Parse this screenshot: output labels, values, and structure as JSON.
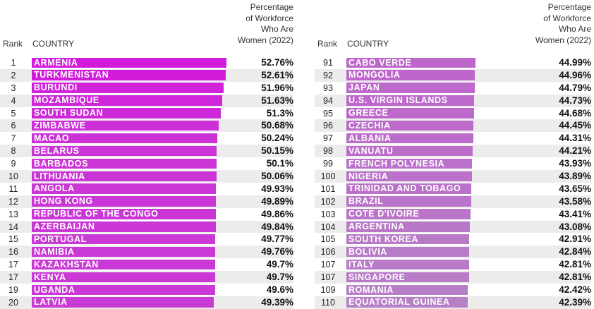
{
  "chart_data": {
    "type": "bar",
    "orientation": "horizontal",
    "column_headers": {
      "rank": "Rank",
      "country": "COUNTRY",
      "value": "Percentage\nof Workforce\nWho Are\nWomen (2022)"
    },
    "colors": {
      "high": "#d21bdc",
      "low": "#b77fc6"
    },
    "xlim": [
      0,
      52.76
    ],
    "panels": [
      {
        "rows": [
          {
            "rank": "1",
            "country": "ARMENIA",
            "value": 52.76,
            "label": "52.76%"
          },
          {
            "rank": "2",
            "country": "TURKMENISTAN",
            "value": 52.61,
            "label": "52.61%"
          },
          {
            "rank": "3",
            "country": "BURUNDI",
            "value": 51.96,
            "label": "51.96%"
          },
          {
            "rank": "4",
            "country": "MOZAMBIQUE",
            "value": 51.63,
            "label": "51.63%"
          },
          {
            "rank": "5",
            "country": "SOUTH SUDAN",
            "value": 51.3,
            "label": "51.3%"
          },
          {
            "rank": "6",
            "country": "ZIMBABWE",
            "value": 50.68,
            "label": "50.68%"
          },
          {
            "rank": "7",
            "country": "MACAO",
            "value": 50.24,
            "label": "50.24%"
          },
          {
            "rank": "8",
            "country": "BELARUS",
            "value": 50.15,
            "label": "50.15%"
          },
          {
            "rank": "9",
            "country": "BARBADOS",
            "value": 50.1,
            "label": "50.1%"
          },
          {
            "rank": "10",
            "country": "LITHUANIA",
            "value": 50.06,
            "label": "50.06%"
          },
          {
            "rank": "11",
            "country": "ANGOLA",
            "value": 49.93,
            "label": "49.93%"
          },
          {
            "rank": "12",
            "country": "HONG KONG",
            "value": 49.89,
            "label": "49.89%"
          },
          {
            "rank": "13",
            "country": "REPUBLIC OF THE CONGO",
            "value": 49.86,
            "label": "49.86%"
          },
          {
            "rank": "14",
            "country": "AZERBAIJAN",
            "value": 49.84,
            "label": "49.84%"
          },
          {
            "rank": "15",
            "country": "PORTUGAL",
            "value": 49.77,
            "label": "49.77%"
          },
          {
            "rank": "16",
            "country": "NAMIBIA",
            "value": 49.76,
            "label": "49.76%"
          },
          {
            "rank": "17",
            "country": "KAZAKHSTAN",
            "value": 49.7,
            "label": "49.7%"
          },
          {
            "rank": "17",
            "country": "KENYA",
            "value": 49.7,
            "label": "49.7%"
          },
          {
            "rank": "19",
            "country": "UGANDA",
            "value": 49.6,
            "label": "49.6%"
          },
          {
            "rank": "20",
            "country": "LATVIA",
            "value": 49.39,
            "label": "49.39%"
          }
        ]
      },
      {
        "rows": [
          {
            "rank": "91",
            "country": "CABO VERDE",
            "value": 44.99,
            "label": "44.99%"
          },
          {
            "rank": "92",
            "country": "MONGOLIA",
            "value": 44.96,
            "label": "44.96%"
          },
          {
            "rank": "93",
            "country": "JAPAN",
            "value": 44.79,
            "label": "44.79%"
          },
          {
            "rank": "94",
            "country": "U.S. VIRGIN ISLANDS",
            "value": 44.73,
            "label": "44.73%"
          },
          {
            "rank": "95",
            "country": "GREECE",
            "value": 44.68,
            "label": "44.68%"
          },
          {
            "rank": "96",
            "country": "CZECHIA",
            "value": 44.45,
            "label": "44.45%"
          },
          {
            "rank": "97",
            "country": "ALBANIA",
            "value": 44.31,
            "label": "44.31%"
          },
          {
            "rank": "98",
            "country": "VANUATU",
            "value": 44.21,
            "label": "44.21%"
          },
          {
            "rank": "99",
            "country": "FRENCH POLYNESIA",
            "value": 43.93,
            "label": "43.93%"
          },
          {
            "rank": "100",
            "country": "NIGERIA",
            "value": 43.89,
            "label": "43.89%"
          },
          {
            "rank": "101",
            "country": "TRINIDAD AND TOBAGO",
            "value": 43.65,
            "label": "43.65%"
          },
          {
            "rank": "102",
            "country": "BRAZIL",
            "value": 43.58,
            "label": "43.58%"
          },
          {
            "rank": "103",
            "country": "COTE D'IVOIRE",
            "value": 43.41,
            "label": "43.41%"
          },
          {
            "rank": "104",
            "country": "ARGENTINA",
            "value": 43.08,
            "label": "43.08%"
          },
          {
            "rank": "105",
            "country": "SOUTH KOREA",
            "value": 42.91,
            "label": "42.91%"
          },
          {
            "rank": "106",
            "country": "BOLIVIA",
            "value": 42.84,
            "label": "42.84%"
          },
          {
            "rank": "107",
            "country": "ITALY",
            "value": 42.81,
            "label": "42.81%"
          },
          {
            "rank": "107",
            "country": "SINGAPORE",
            "value": 42.81,
            "label": "42.81%"
          },
          {
            "rank": "109",
            "country": "ROMANIA",
            "value": 42.42,
            "label": "42.42%"
          },
          {
            "rank": "110",
            "country": "EQUATORIAL GUINEA",
            "value": 42.39,
            "label": "42.39%"
          }
        ]
      }
    ]
  }
}
